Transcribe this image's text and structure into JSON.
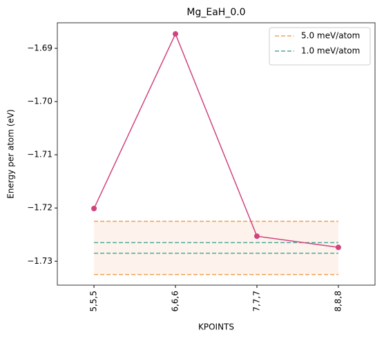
{
  "chart_data": {
    "type": "line",
    "title": "Mg_EaH_0.0",
    "x_label": "KPOINTS",
    "y_label": "Energy per atom (eV)",
    "categories": [
      "5,5,5",
      "6,6,6",
      "7,7,7",
      "8,8,8"
    ],
    "series": [
      {
        "color": "#d0437f",
        "values": [
          -1.7201,
          -1.6873,
          -1.7253,
          -1.7274
        ]
      }
    ],
    "bands": [
      {
        "name": "5.0 meV/atom",
        "color": "#f0a050",
        "fill": "#fdf3ec",
        "lower": -1.7325,
        "upper": -1.7225
      },
      {
        "name": "1.0 meV/atom",
        "color": "#4aa89a",
        "lower": -1.7285,
        "upper": -1.7265
      }
    ],
    "ylim": [
      -1.7345,
      -1.6852
    ],
    "yticks": [
      {
        "value": -1.73,
        "label": "−1.73"
      },
      {
        "value": -1.72,
        "label": "−1.72"
      },
      {
        "value": -1.71,
        "label": "−1.71"
      },
      {
        "value": -1.7,
        "label": "−1.70"
      },
      {
        "value": -1.69,
        "label": "−1.69"
      }
    ],
    "legend": "upper right"
  }
}
